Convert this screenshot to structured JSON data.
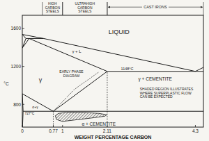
{
  "chart_data": {
    "type": "phase_diagram",
    "xlabel": "WEIGHT PERCENTAGE CARBON",
    "ylabel": "°C",
    "xlim": [
      0,
      4.5
    ],
    "ylim": [
      560,
      1740
    ],
    "xticks": [
      0,
      0.77,
      1,
      2.11,
      4.3
    ],
    "yticks": [
      800,
      1200,
      1600
    ],
    "color": "#1a1a1a",
    "boundaries": [
      {
        "x": [
          0,
          0.53,
          4.3
        ],
        "y": [
          1538,
          1495,
          1148
        ],
        "line_style": "solid"
      },
      {
        "x": [
          4.3,
          4.5
        ],
        "y": [
          1148,
          1190
        ],
        "line_style": "solid"
      },
      {
        "x": [
          0.09,
          0.53
        ],
        "y": [
          1495,
          1495
        ],
        "line_style": "solid"
      },
      {
        "x": [
          0,
          0.09
        ],
        "y": [
          1538,
          1495
        ],
        "line_style": "solid"
      },
      {
        "x": [
          0.09,
          0,
          0.17
        ],
        "y": [
          1495,
          1394,
          1495
        ],
        "line_style": "solid"
      },
      {
        "x": [
          0.17,
          2.11
        ],
        "y": [
          1495,
          1148
        ],
        "line_style": "solid"
      },
      {
        "x": [
          2.11,
          4.5
        ],
        "y": [
          1148,
          1148
        ],
        "line_style": "solid"
      },
      {
        "x": [
          0.77,
          2.11
        ],
        "y": [
          727,
          1148
        ],
        "line_style": "solid"
      },
      {
        "x": [
          0,
          0.77
        ],
        "y": [
          912,
          727
        ],
        "line_style": "solid"
      },
      {
        "x": [
          0.02,
          4.5
        ],
        "y": [
          727,
          727
        ],
        "line_style": "solid"
      },
      {
        "x": [
          0,
          0.02,
          0.005
        ],
        "y": [
          912,
          727,
          560
        ],
        "line_style": "solid"
      },
      {
        "x": [
          0.77,
          1.3,
          1.9
        ],
        "y": [
          727,
          960,
          1140
        ],
        "line_style": "dashed"
      },
      {
        "x": [
          0.77,
          0.77
        ],
        "y": [
          560,
          727
        ],
        "line_style": "dashed"
      },
      {
        "x": [
          2.11,
          2.11
        ],
        "y": [
          560,
          1148
        ],
        "line_style": "dashed"
      }
    ],
    "superplastic_region": {
      "x": [
        0.82,
        0.9,
        1.1,
        1.5,
        1.9,
        2.1,
        2.05,
        1.7,
        1.3,
        1.0,
        0.85
      ],
      "y": [
        680,
        705,
        715,
        715,
        705,
        690,
        675,
        655,
        635,
        620,
        640
      ],
      "color": "#222222"
    },
    "annotations": [
      {
        "text": "LIQUID"
      },
      {
        "text": "γ"
      },
      {
        "text": "γ + L"
      },
      {
        "text": "γ + CEMENTITE"
      },
      {
        "text": "α + CEMENTITE"
      },
      {
        "text": "α+γ"
      },
      {
        "text": "727°C"
      },
      {
        "text": "1148°C"
      },
      {
        "text": [
          "EARLY PHASE",
          "DIAGRAM"
        ]
      },
      {
        "text": [
          "SHADED REGION ILLUSTRATES",
          "WHERE SUPERPLASTIC FLOW",
          "CAN BE EXPECTED"
        ]
      }
    ],
    "regions": [
      {
        "text": [
          "HIGH",
          "CARBON",
          "STEELS"
        ],
        "from": 0.5,
        "to": 1.0
      },
      {
        "text": [
          "ULTRAHIGH",
          "CARBON",
          "STEELS"
        ],
        "from": 1.0,
        "to": 2.11
      },
      {
        "text": [
          "CAST IRONS"
        ],
        "from": 2.11,
        "to": 4.5
      }
    ]
  }
}
